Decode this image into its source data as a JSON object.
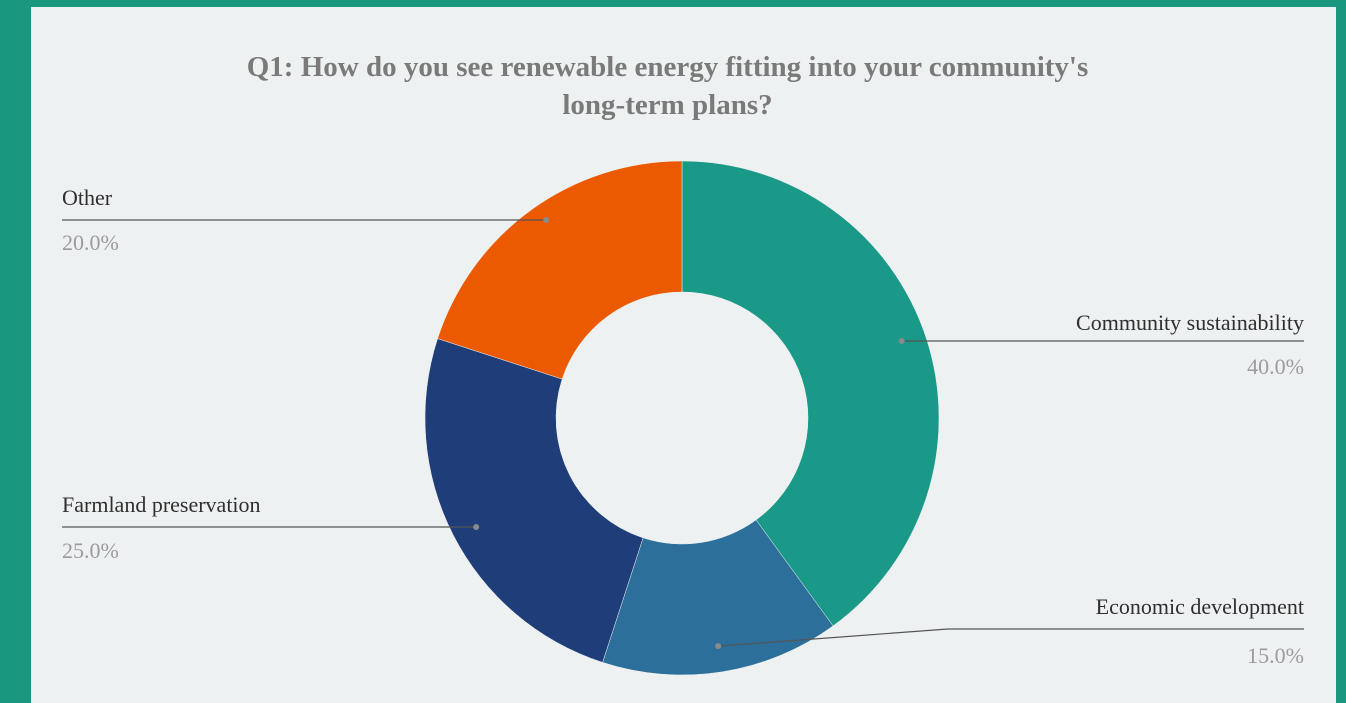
{
  "chart_data": {
    "type": "pie",
    "title_lines": [
      "Q1: How do you see renewable energy fitting into your community's",
      "long-term plans?"
    ],
    "donut": true,
    "slices": [
      {
        "label": "Community sustainability",
        "value": 40.0,
        "pct_label": "40.0%",
        "color": "#1a9988"
      },
      {
        "label": "Economic development",
        "value": 15.0,
        "pct_label": "15.0%",
        "color": "#2c6f9a"
      },
      {
        "label": "Farmland preservation",
        "value": 25.0,
        "pct_label": "25.0%",
        "color": "#1f3d78"
      },
      {
        "label": "Other",
        "value": 20.0,
        "pct_label": "20.0%",
        "color": "#eb5a00"
      }
    ],
    "colors": {
      "background_frame": "#1a977f",
      "panel": "#eef1f2",
      "title": "#7a7a7a",
      "leader_line": "#555555"
    }
  }
}
